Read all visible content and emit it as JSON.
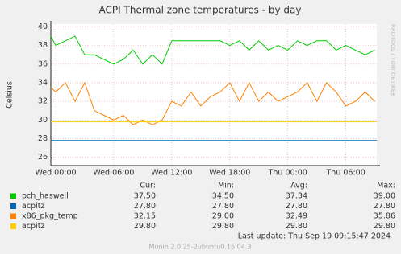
{
  "chart_data": {
    "type": "line",
    "title": "ACPI Thermal zone temperatures - by day",
    "y_label": "Celsius",
    "side_text": "RRDTOOL / TOBI OETIKER",
    "xlim": [
      -0.5,
      33.2
    ],
    "xticks": [
      {
        "value": 0,
        "label": "Wed 00:00"
      },
      {
        "value": 6,
        "label": "Wed 06:00"
      },
      {
        "value": 12,
        "label": "Wed 12:00"
      },
      {
        "value": 18,
        "label": "Wed 18:00"
      },
      {
        "value": 24,
        "label": "Thu 00:00"
      },
      {
        "value": 30,
        "label": "Thu 06:00"
      }
    ],
    "ylim": [
      25.1,
      40.3
    ],
    "yticks": [
      26,
      28,
      30,
      32,
      34,
      36,
      38,
      40
    ],
    "grid": true,
    "stat_headers": [
      "Cur:",
      "Min:",
      "Avg:",
      "Max:"
    ],
    "series": [
      {
        "name": "pch_haswell",
        "color": "#00cc00",
        "x": [
          -0.5,
          0,
          1,
          2,
          3,
          4,
          5,
          6,
          7,
          8,
          9,
          10,
          11,
          12,
          13,
          14,
          15,
          16,
          17,
          18,
          19,
          20,
          21,
          22,
          23,
          24,
          25,
          26,
          27,
          28,
          29,
          30,
          31,
          32,
          33
        ],
        "values": [
          39,
          38,
          38.5,
          39,
          37,
          37,
          36.5,
          36,
          36.5,
          37.5,
          36,
          37,
          36,
          38.5,
          38.5,
          38.5,
          38.5,
          38.5,
          38.5,
          38,
          38.5,
          37.5,
          38.5,
          37.5,
          38,
          37.5,
          38.5,
          38,
          38.5,
          38.5,
          37.5,
          38,
          37.5,
          37,
          37.5
        ],
        "stats": [
          "37.50",
          "34.50",
          "37.34",
          "39.00"
        ]
      },
      {
        "name": "acpitz",
        "color": "#0066b3",
        "x": [
          -0.5,
          33.2
        ],
        "values": [
          27.8,
          27.8
        ],
        "stats": [
          "27.80",
          "27.80",
          "27.80",
          "27.80"
        ]
      },
      {
        "name": "x86_pkg_temp",
        "color": "#ff8000",
        "x": [
          -0.5,
          0,
          1,
          2,
          3,
          4,
          5,
          6,
          7,
          8,
          9,
          10,
          11,
          12,
          13,
          14,
          15,
          16,
          17,
          18,
          19,
          20,
          21,
          22,
          23,
          24,
          25,
          26,
          27,
          28,
          29,
          30,
          31,
          32,
          33
        ],
        "values": [
          33.5,
          33,
          34,
          32,
          34,
          31,
          30.5,
          30,
          30.5,
          29.5,
          30,
          29.5,
          30,
          32,
          31.5,
          33,
          31.5,
          32.5,
          33,
          34,
          32,
          34,
          32,
          33,
          32,
          32.5,
          33,
          34,
          32,
          34,
          33,
          31.5,
          32,
          33,
          32
        ],
        "stats": [
          "32.15",
          "29.00",
          "32.49",
          "35.86"
        ]
      },
      {
        "name": "acpitz",
        "color": "#ffcc00",
        "x": [
          -0.5,
          33.2
        ],
        "values": [
          29.8,
          29.8
        ],
        "stats": [
          "29.80",
          "29.80",
          "29.80",
          "29.80"
        ]
      }
    ],
    "last_update": "Last update:  Thu Sep 19 09:15:47 2024",
    "footer": "Munin 2.0.25-2ubuntu0.16.04.3"
  }
}
